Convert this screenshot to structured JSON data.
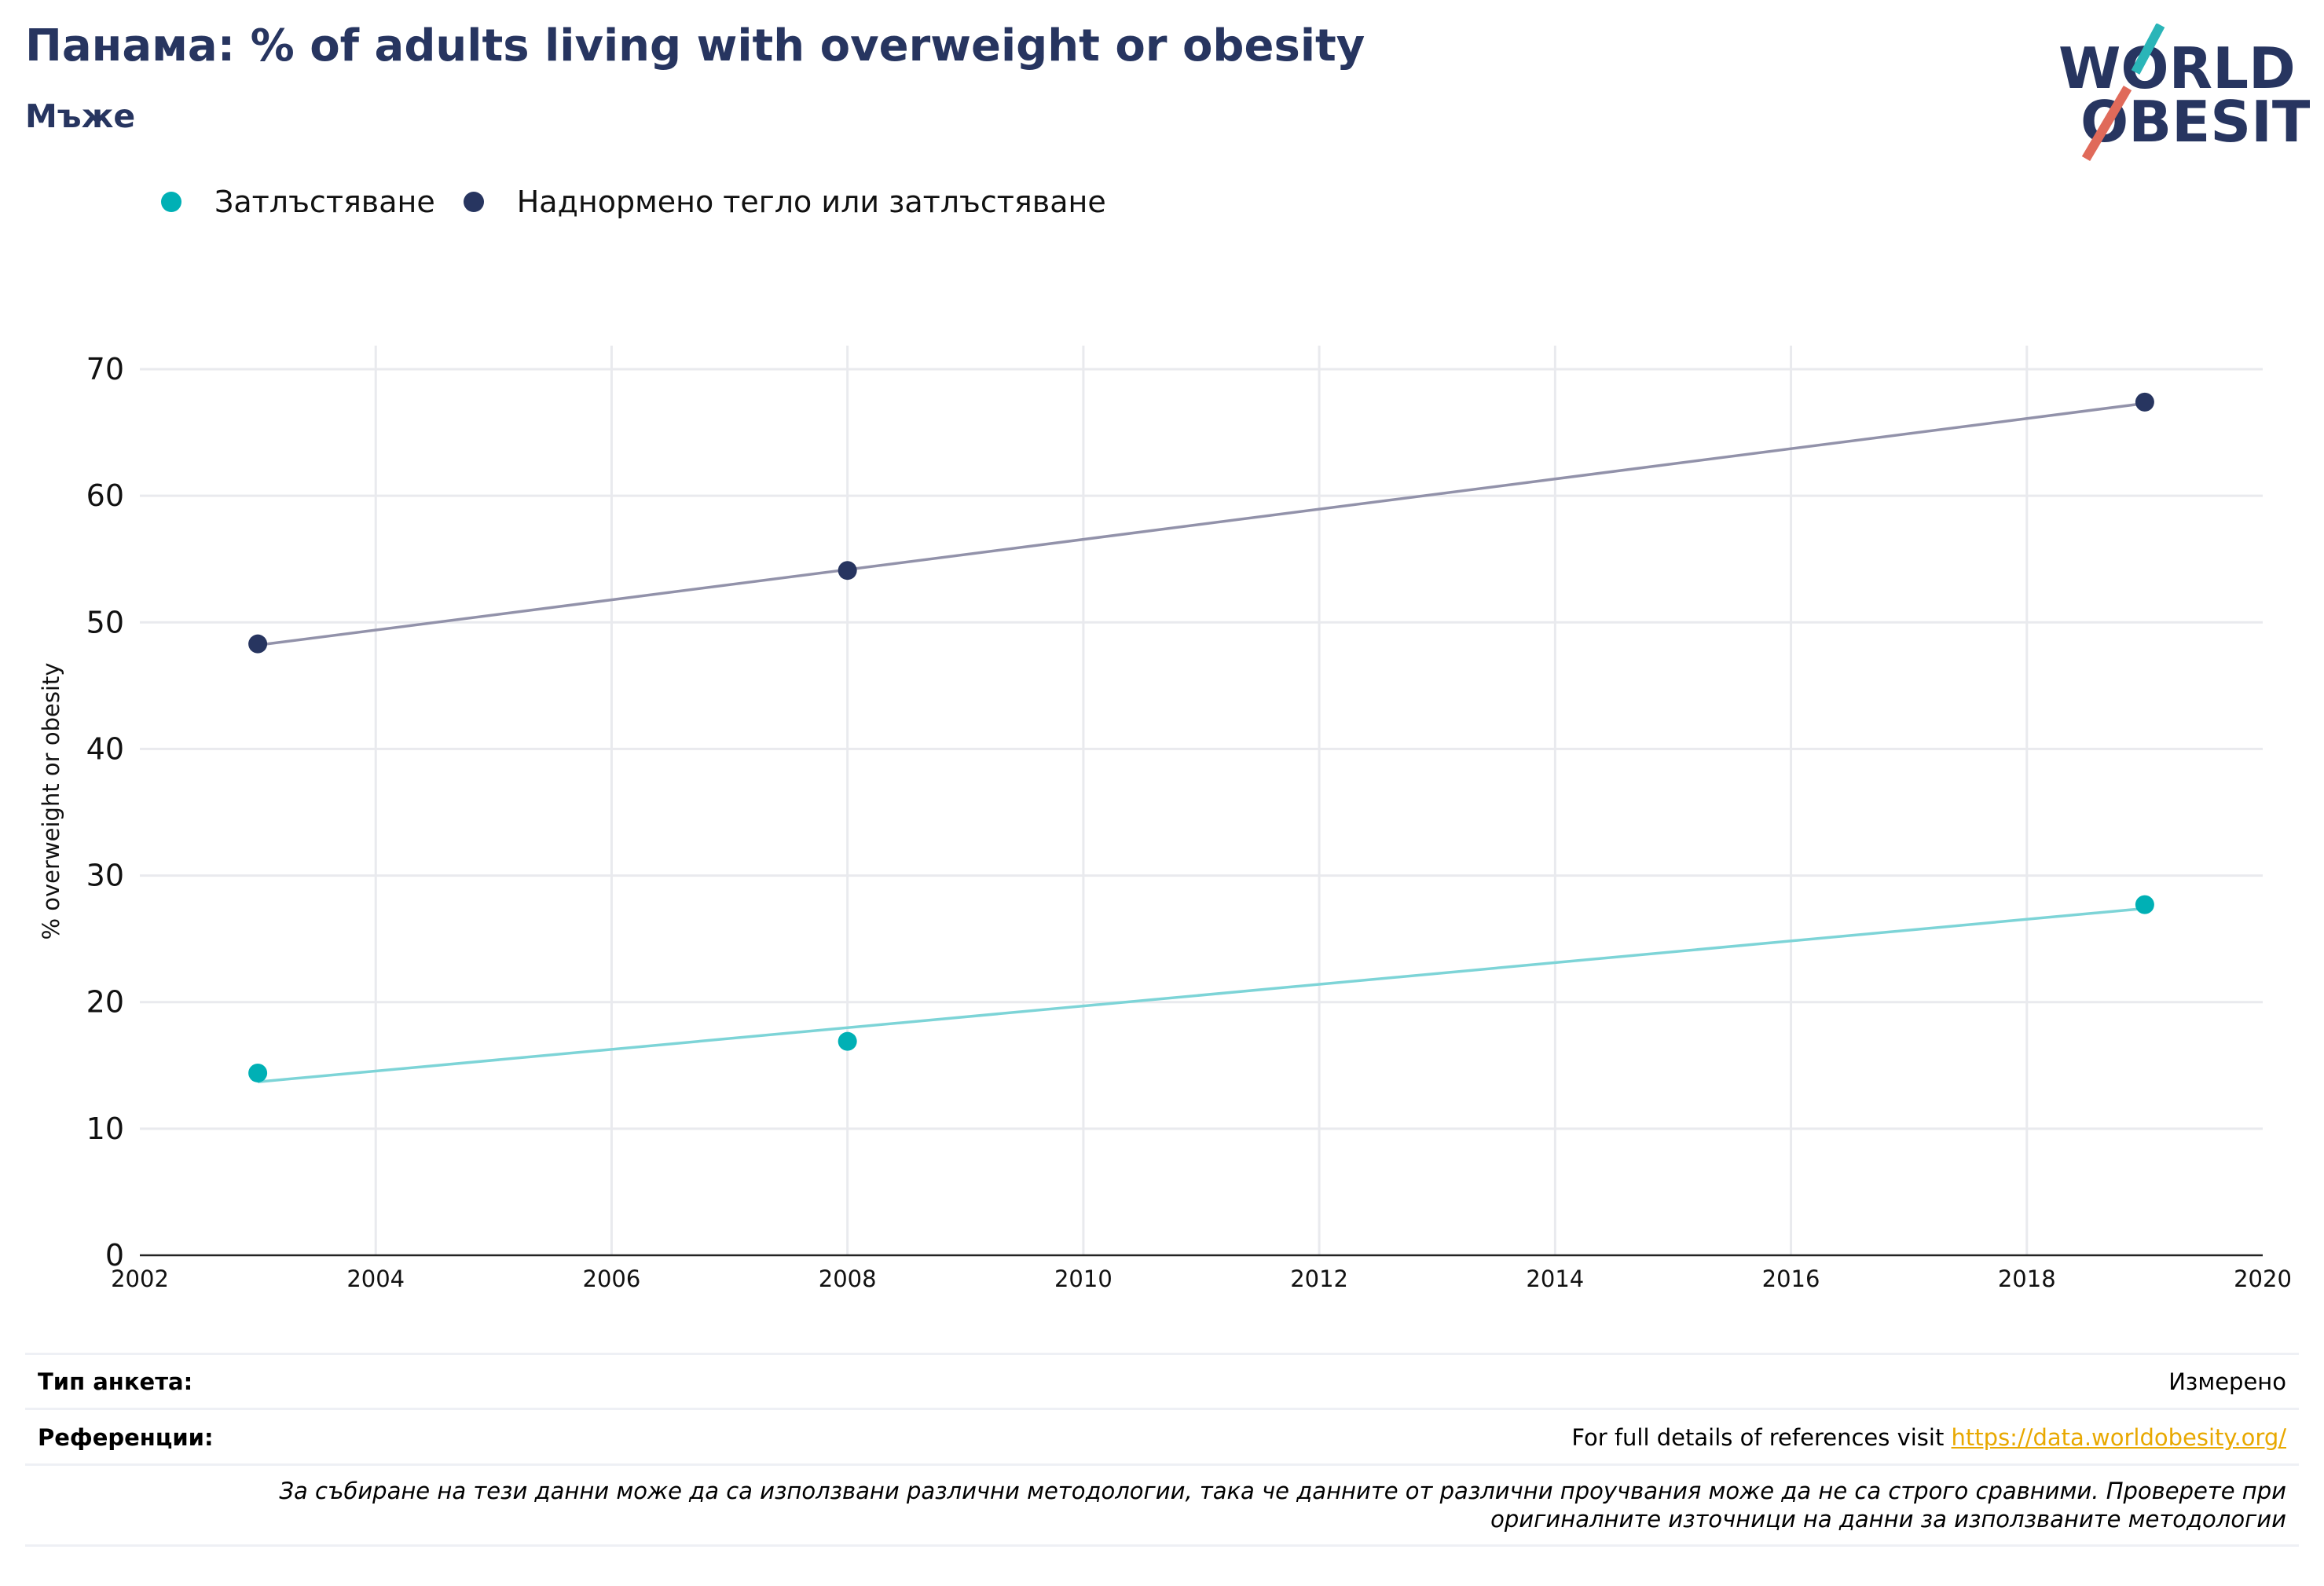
{
  "header": {
    "title": "Панама: % of adults living with overweight or obesity",
    "subtitle": "Мъже"
  },
  "logo": {
    "line1": "WORLD",
    "line2": "OBESITY",
    "color_text": "#273560",
    "color_teal": "#2bb5b8",
    "color_red": "#e06a5a"
  },
  "chart_data": {
    "type": "scatter",
    "title": "",
    "xlabel": "",
    "ylabel": "% overweight or obesity",
    "xlim": [
      2002,
      2020
    ],
    "ylim": [
      0,
      70
    ],
    "x_ticks": [
      2002,
      2004,
      2006,
      2008,
      2010,
      2012,
      2014,
      2016,
      2018,
      2020
    ],
    "y_ticks": [
      0,
      10,
      20,
      30,
      40,
      50,
      60,
      70
    ],
    "grid": true,
    "legend_position": "top-left",
    "series": [
      {
        "name": "Затлъстяване",
        "color": "#00b0b5",
        "trend_color": "#7dd4d7",
        "points": [
          [
            2003,
            14.4
          ],
          [
            2008,
            16.9
          ],
          [
            2019,
            27.7
          ]
        ],
        "trend": [
          [
            2003,
            13.7
          ],
          [
            2019,
            27.4
          ]
        ]
      },
      {
        "name": "Наднормено тегло или затлъстяване",
        "color": "#273560",
        "trend_color": "#9292aa",
        "points": [
          [
            2003,
            48.3
          ],
          [
            2008,
            54.1
          ],
          [
            2019,
            67.4
          ]
        ],
        "trend": [
          [
            2003,
            48.2
          ],
          [
            2019,
            67.3
          ]
        ]
      }
    ]
  },
  "footer": {
    "survey_label": "Тип анкета:",
    "survey_value": "Измерено",
    "refs_label": "Референции:",
    "refs_text": "For full details of references visit ",
    "refs_link": "https://data.worldobesity.org/",
    "note": "За събиране на тези данни може да са използвани различни методологии, така че данните от различни проучвания може да не са строго сравними. Проверете при оригиналните източници на данни за използваните методологии"
  }
}
